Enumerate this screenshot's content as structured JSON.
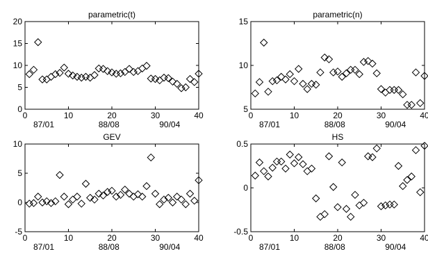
{
  "chart_data": [
    {
      "type": "scatter",
      "title": "parametric(t)",
      "xlim": [
        0,
        40
      ],
      "ylim": [
        0,
        20
      ],
      "xticks": [
        0,
        10,
        20,
        30,
        40
      ],
      "yticks": [
        0,
        5,
        10,
        15,
        20
      ],
      "date_labels": [
        "87/01",
        "88/08",
        "90/04"
      ],
      "marker": "diamond",
      "grid": false,
      "series": [
        {
          "x": [
            1,
            2,
            3,
            4,
            5,
            6,
            7,
            8,
            9,
            10,
            11,
            12,
            13,
            14,
            15,
            16,
            17,
            18,
            19,
            20,
            21,
            22,
            23,
            24,
            25,
            26,
            27,
            28,
            29,
            30,
            31,
            32,
            33,
            34,
            35,
            36,
            37,
            38,
            39,
            40
          ],
          "values": [
            8.0,
            9.0,
            15.3,
            6.8,
            6.8,
            7.4,
            8.0,
            8.3,
            9.5,
            8.1,
            7.7,
            7.4,
            7.2,
            7.4,
            7.2,
            7.8,
            9.3,
            9.2,
            8.7,
            8.4,
            8.1,
            8.2,
            8.5,
            9.2,
            8.5,
            8.7,
            9.3,
            9.9,
            7.0,
            6.9,
            6.6,
            7.2,
            7.1,
            6.3,
            5.8,
            4.8,
            5.0,
            6.9,
            6.2,
            8.1
          ]
        }
      ]
    },
    {
      "type": "scatter",
      "title": "parametric(n)",
      "xlim": [
        0,
        40
      ],
      "ylim": [
        5,
        15
      ],
      "xticks": [
        0,
        10,
        20,
        30,
        40
      ],
      "yticks": [
        5,
        10,
        15
      ],
      "date_labels": [
        "87/01",
        "88/08",
        "90/04"
      ],
      "marker": "diamond",
      "grid": false,
      "series": [
        {
          "x": [
            1,
            2,
            3,
            4,
            5,
            6,
            7,
            8,
            9,
            10,
            11,
            12,
            13,
            14,
            15,
            16,
            17,
            18,
            19,
            20,
            21,
            22,
            23,
            24,
            25,
            26,
            27,
            28,
            29,
            30,
            31,
            32,
            33,
            34,
            35,
            36,
            37,
            38,
            39,
            40
          ],
          "values": [
            6.8,
            8.1,
            12.6,
            7.0,
            8.2,
            8.3,
            8.7,
            8.4,
            9.0,
            8.2,
            9.6,
            7.9,
            7.3,
            7.9,
            7.8,
            9.2,
            10.9,
            10.7,
            9.2,
            9.3,
            8.7,
            9.1,
            9.5,
            9.5,
            9.0,
            10.4,
            10.5,
            10.2,
            9.1,
            7.3,
            6.9,
            7.2,
            7.2,
            7.2,
            6.7,
            5.5,
            5.5,
            9.2,
            5.7,
            8.8
          ]
        }
      ]
    },
    {
      "type": "scatter",
      "title": "GEV",
      "xlim": [
        0,
        40
      ],
      "ylim": [
        -5,
        10
      ],
      "xticks": [
        0,
        10,
        20,
        30,
        40
      ],
      "yticks": [
        -5,
        0,
        5,
        10
      ],
      "date_labels": [
        "87/01",
        "88/08",
        "90/04"
      ],
      "marker": "diamond",
      "grid": false,
      "series": [
        {
          "x": [
            1,
            2,
            3,
            4,
            5,
            6,
            7,
            8,
            9,
            10,
            11,
            12,
            13,
            14,
            15,
            16,
            17,
            18,
            19,
            20,
            21,
            22,
            23,
            24,
            25,
            26,
            27,
            28,
            29,
            30,
            31,
            32,
            33,
            34,
            35,
            36,
            37,
            38,
            39,
            40
          ],
          "values": [
            -0.2,
            -0.1,
            1.0,
            0.0,
            0.2,
            -0.1,
            0.2,
            4.7,
            1.0,
            -0.3,
            0.5,
            1.0,
            -0.2,
            3.2,
            0.8,
            0.5,
            1.5,
            1.2,
            1.8,
            2.0,
            1.0,
            1.3,
            2.2,
            1.5,
            1.0,
            1.4,
            1.0,
            2.8,
            7.7,
            1.5,
            -0.3,
            0.5,
            0.8,
            0.0,
            1.0,
            0.5,
            -0.3,
            1.5,
            0.3,
            3.8
          ]
        }
      ]
    },
    {
      "type": "scatter",
      "title": "HS",
      "xlim": [
        0,
        40
      ],
      "ylim": [
        -0.5,
        0.5
      ],
      "xticks": [
        0,
        10,
        20,
        30,
        40
      ],
      "yticks": [
        -0.5,
        0,
        0.5
      ],
      "date_labels": [
        "87/01",
        "88/08",
        "90/04"
      ],
      "marker": "diamond",
      "grid": false,
      "series": [
        {
          "x": [
            1,
            2,
            3,
            4,
            5,
            6,
            7,
            8,
            9,
            10,
            11,
            12,
            13,
            14,
            15,
            16,
            17,
            18,
            19,
            20,
            21,
            22,
            23,
            24,
            25,
            26,
            27,
            28,
            29,
            30,
            31,
            32,
            33,
            34,
            35,
            36,
            37,
            38,
            39,
            40
          ],
          "values": [
            0.14,
            0.29,
            0.19,
            0.13,
            0.23,
            0.3,
            0.3,
            0.22,
            0.38,
            0.28,
            0.35,
            0.27,
            0.19,
            0.22,
            -0.12,
            -0.33,
            -0.3,
            0.36,
            0.01,
            -0.22,
            0.29,
            -0.24,
            -0.33,
            -0.08,
            -0.2,
            -0.17,
            0.36,
            0.35,
            0.45,
            -0.21,
            -0.2,
            -0.19,
            -0.19,
            0.25,
            0.02,
            0.09,
            0.13,
            0.43,
            -0.05,
            0.48
          ]
        }
      ]
    }
  ]
}
